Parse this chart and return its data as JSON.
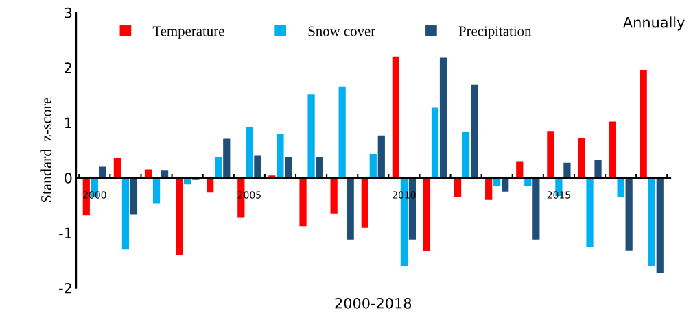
{
  "chart_data": {
    "type": "bar",
    "xlabel": "2000-2018",
    "ylabel": "Standard  z-score",
    "categories": [
      "2000",
      null,
      null,
      null,
      null,
      "2005",
      null,
      null,
      null,
      null,
      "2010",
      null,
      null,
      null,
      null,
      "2015",
      null,
      null,
      null
    ],
    "series": [
      {
        "name": "Temperature",
        "color": "#ff0000",
        "values": [
          -0.68,
          0.36,
          0.15,
          -1.4,
          -0.27,
          -0.72,
          0.04,
          -0.88,
          -0.65,
          -0.91,
          2.2,
          -1.33,
          -0.34,
          -0.4,
          0.3,
          0.85,
          0.72,
          1.02,
          1.96
        ]
      },
      {
        "name": "Snow cover",
        "color": "#00b0f0",
        "values": [
          -0.35,
          -1.3,
          -0.47,
          -0.12,
          0.38,
          0.92,
          0.79,
          1.52,
          1.65,
          0.43,
          -1.6,
          1.28,
          0.84,
          -0.15,
          -0.15,
          -0.33,
          -1.25,
          -0.34,
          -1.6
        ]
      },
      {
        "name": "Precipitation",
        "color": "#1f4e79",
        "values": [
          0.2,
          -0.67,
          0.14,
          -0.04,
          0.71,
          0.4,
          0.38,
          0.38,
          -1.12,
          0.77,
          -1.12,
          2.19,
          1.69,
          -0.25,
          -1.12,
          0.27,
          0.32,
          -1.32,
          -1.72
        ]
      }
    ],
    "ylim": [
      -2,
      3
    ],
    "yticks": [
      -2,
      -1,
      0,
      1,
      2,
      3
    ],
    "grid": false,
    "legend": "top",
    "annotations": [
      "Annually"
    ]
  }
}
